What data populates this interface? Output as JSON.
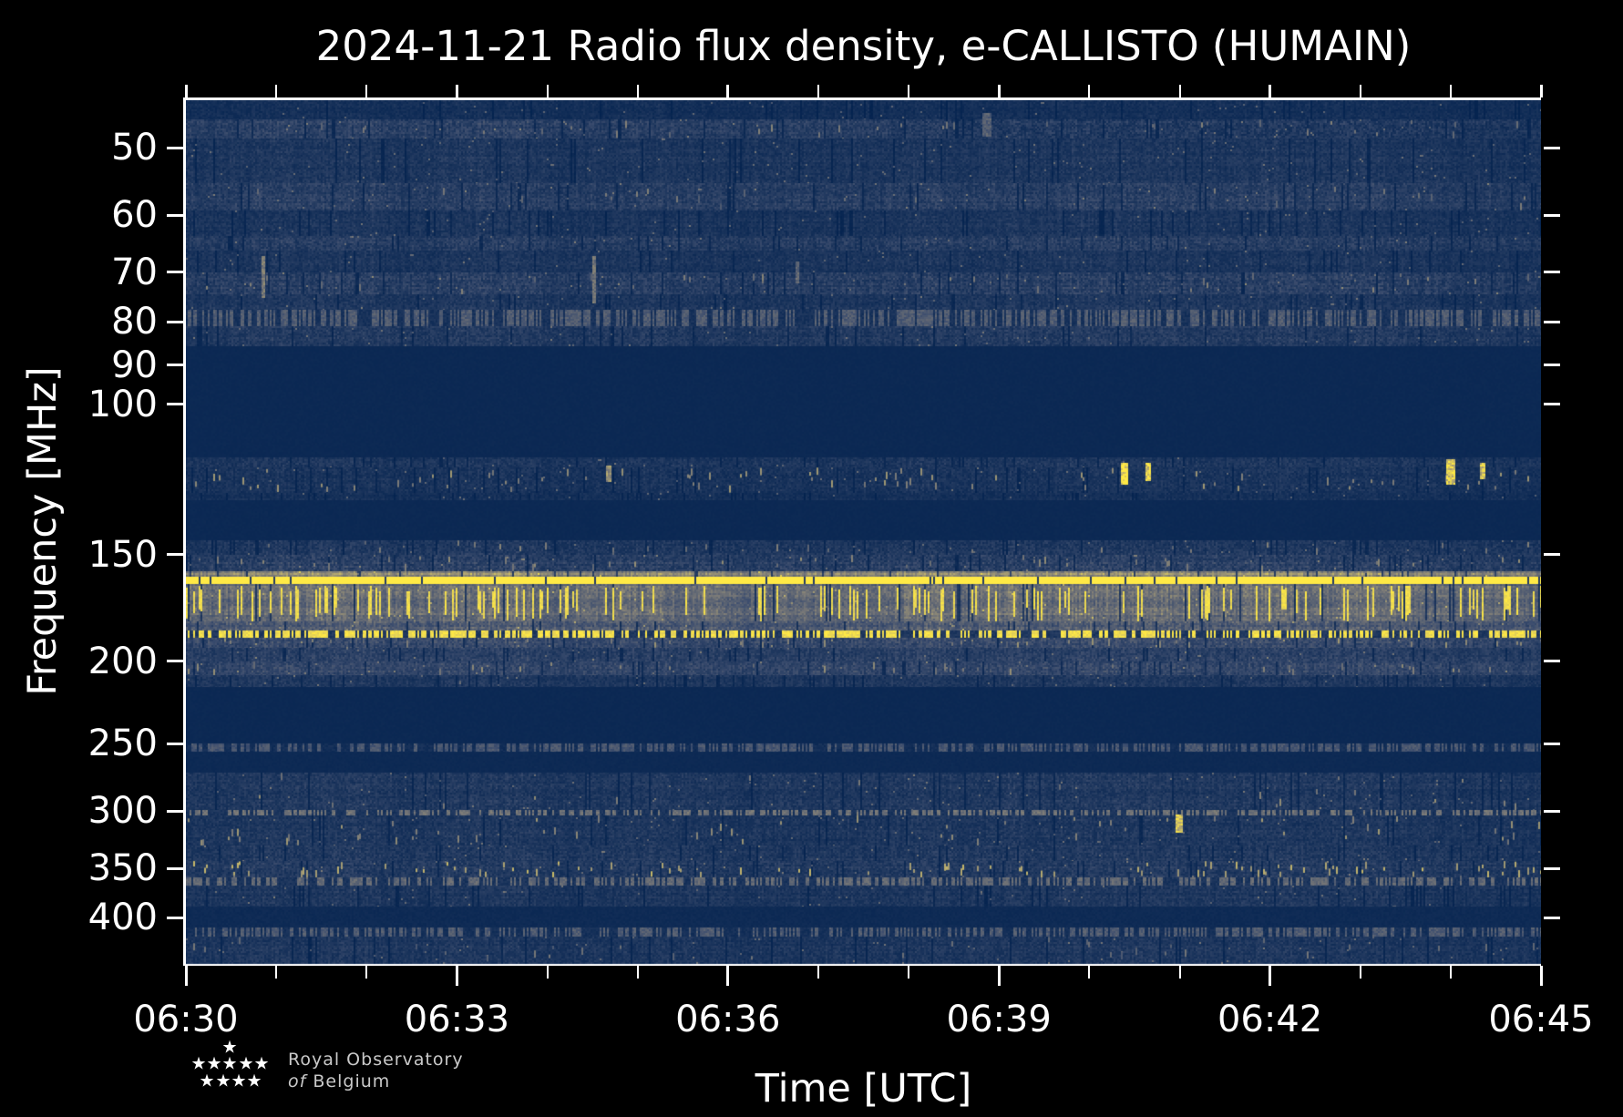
{
  "title": "2024-11-21 Radio flux density, e-CALLISTO (HUMAIN)",
  "footer": {
    "org_line1": "Royal Observatory",
    "org_line2_italic": "of",
    "org_line2_rest": "Belgium"
  },
  "chart_data": {
    "type": "heatmap",
    "title": "2024-11-21 Radio flux density, e-CALLISTO (HUMAIN)",
    "xlabel": "Time [UTC]",
    "ylabel": "Frequency [MHz]",
    "x_ticks": [
      "06:30",
      "06:33",
      "06:36",
      "06:39",
      "06:42",
      "06:45"
    ],
    "x_minor_per_major": 3,
    "y_ticks": [
      50,
      60,
      70,
      80,
      90,
      100,
      150,
      200,
      250,
      300,
      350,
      400
    ],
    "y_scale": "log",
    "y_range_mhz": [
      44,
      452
    ],
    "time_span_minutes": 15,
    "grid": false,
    "legend": "none",
    "colormap": "cividis",
    "colormap_stops": [
      [
        0.0,
        [
          0,
          32,
          77
        ]
      ],
      [
        0.25,
        [
          60,
          77,
          110
        ]
      ],
      [
        0.5,
        [
          124,
          123,
          120
        ]
      ],
      [
        0.75,
        [
          188,
          175,
          111
        ]
      ],
      [
        1.0,
        [
          255,
          233,
          69
        ]
      ]
    ],
    "background_level": 0.05,
    "seed": 42,
    "bands": [
      {
        "f0": 44,
        "f1": 46.3,
        "style": "noise",
        "level": 0.08,
        "var": 0.07
      },
      {
        "f0": 46.3,
        "f1": 48.8,
        "style": "speckle",
        "level": 0.17,
        "var": 0.14,
        "density": 0.04,
        "bright": 0.45,
        "step_at": 0.52,
        "step_gain": 0.78
      },
      {
        "f0": 48.8,
        "f1": 55,
        "style": "noise",
        "level": 0.12,
        "var": 0.1
      },
      {
        "f0": 55,
        "f1": 59.3,
        "style": "speckle",
        "level": 0.16,
        "var": 0.13,
        "density": 0.03,
        "bright": 0.42
      },
      {
        "f0": 59.3,
        "f1": 63.5,
        "style": "noise",
        "level": 0.11,
        "var": 0.09
      },
      {
        "f0": 63.5,
        "f1": 66,
        "style": "noise",
        "level": 0.15,
        "var": 0.13
      },
      {
        "f0": 66,
        "f1": 70,
        "style": "noise",
        "level": 0.11,
        "var": 0.09
      },
      {
        "f0": 70,
        "f1": 74.3,
        "style": "speckle",
        "level": 0.16,
        "var": 0.14,
        "density": 0.03,
        "bright": 0.45
      },
      {
        "f0": 74.3,
        "f1": 77.5,
        "style": "noise",
        "level": 0.12,
        "var": 0.1
      },
      {
        "f0": 77.5,
        "f1": 81,
        "style": "dotline",
        "level": 0.1,
        "var": 0.08,
        "density": 0.5,
        "bright": 0.33
      },
      {
        "f0": 81,
        "f1": 85.4,
        "style": "noise",
        "level": 0.14,
        "var": 0.12
      },
      {
        "f0": 85.4,
        "f1": 115.5,
        "style": "flat",
        "level": 0.05,
        "var": 0.015
      },
      {
        "f0": 115.5,
        "f1": 118.5,
        "style": "noise",
        "level": 0.11,
        "var": 0.1
      },
      {
        "f0": 118.5,
        "f1": 127,
        "style": "speckle",
        "level": 0.1,
        "var": 0.09,
        "density": 0.1,
        "bright": 0.55
      },
      {
        "f0": 127,
        "f1": 129.7,
        "style": "noise",
        "level": 0.09,
        "var": 0.07
      },
      {
        "f0": 129.7,
        "f1": 144.4,
        "style": "flat",
        "level": 0.05,
        "var": 0.015
      },
      {
        "f0": 144.4,
        "f1": 150,
        "style": "speckle",
        "level": 0.13,
        "var": 0.12,
        "density": 0.03,
        "bright": 0.45
      },
      {
        "f0": 150,
        "f1": 156.8,
        "style": "speckle",
        "level": 0.17,
        "var": 0.15,
        "density": 0.06,
        "bright": 0.5
      },
      {
        "f0": 156.8,
        "f1": 159.1,
        "style": "noise",
        "level": 0.55,
        "var": 0.16
      },
      {
        "f0": 159.1,
        "f1": 162.3,
        "style": "line",
        "level": 1.0,
        "var": 0.0
      },
      {
        "f0": 162.3,
        "f1": 179.5,
        "style": "bursts",
        "level": 0.4,
        "var": 0.16,
        "density": 0.17,
        "bright": 1.0
      },
      {
        "f0": 179.5,
        "f1": 184,
        "style": "noise",
        "level": 0.3,
        "var": 0.16
      },
      {
        "f0": 184,
        "f1": 187.7,
        "style": "dotline",
        "level": 0.13,
        "var": 0.1,
        "density": 0.58,
        "bright": 0.95
      },
      {
        "f0": 187.7,
        "f1": 193,
        "style": "speckle",
        "level": 0.22,
        "var": 0.15,
        "density": 0.04,
        "bright": 0.55
      },
      {
        "f0": 193,
        "f1": 200,
        "style": "noise",
        "level": 0.16,
        "var": 0.12
      },
      {
        "f0": 200,
        "f1": 208,
        "style": "speckle",
        "level": 0.2,
        "var": 0.14,
        "density": 0.04,
        "bright": 0.5
      },
      {
        "f0": 208,
        "f1": 214.4,
        "style": "noise",
        "level": 0.12,
        "var": 0.1
      },
      {
        "f0": 214.4,
        "f1": 249.7,
        "style": "flat",
        "level": 0.05,
        "var": 0.015
      },
      {
        "f0": 249.7,
        "f1": 255.5,
        "style": "dotline",
        "level": 0.08,
        "var": 0.07,
        "density": 0.55,
        "bright": 0.3
      },
      {
        "f0": 255.5,
        "f1": 270.6,
        "style": "flat",
        "level": 0.055,
        "var": 0.02
      },
      {
        "f0": 270.6,
        "f1": 299.1,
        "style": "speckle",
        "level": 0.13,
        "var": 0.11,
        "density": 0.04,
        "bright": 0.5
      },
      {
        "f0": 299.1,
        "f1": 303.5,
        "style": "dotline",
        "level": 0.11,
        "var": 0.09,
        "density": 0.5,
        "bright": 0.45
      },
      {
        "f0": 303.5,
        "f1": 329.5,
        "style": "speckle",
        "level": 0.12,
        "var": 0.1,
        "density": 0.08,
        "bright": 0.55
      },
      {
        "f0": 329.5,
        "f1": 343,
        "style": "noise",
        "level": 0.13,
        "var": 0.11
      },
      {
        "f0": 343,
        "f1": 358.6,
        "style": "speckle",
        "level": 0.14,
        "var": 0.12,
        "density": 0.14,
        "bright": 0.7
      },
      {
        "f0": 358.6,
        "f1": 366.7,
        "style": "dotline",
        "level": 0.11,
        "var": 0.09,
        "density": 0.5,
        "bright": 0.4
      },
      {
        "f0": 366.7,
        "f1": 387.8,
        "style": "noise",
        "level": 0.12,
        "var": 0.1
      },
      {
        "f0": 387.8,
        "f1": 410.7,
        "style": "flat",
        "level": 0.06,
        "var": 0.03
      },
      {
        "f0": 410.7,
        "f1": 420.7,
        "style": "dotline",
        "level": 0.09,
        "var": 0.07,
        "density": 0.5,
        "bright": 0.33
      },
      {
        "f0": 420.7,
        "f1": 452,
        "style": "speckle",
        "level": 0.12,
        "var": 0.1,
        "density": 0.04,
        "bright": 0.4
      }
    ],
    "transients": [
      {
        "x_frac": 0.056,
        "f0": 67,
        "f1": 75,
        "level": 0.5,
        "width": 3
      },
      {
        "x_frac": 0.3,
        "f0": 67,
        "f1": 76,
        "level": 0.45,
        "width": 3
      },
      {
        "x_frac": 0.45,
        "f0": 68,
        "f1": 72,
        "level": 0.4,
        "width": 3
      },
      {
        "x_frac": 0.588,
        "f0": 45.5,
        "f1": 48.5,
        "level": 0.35,
        "width": 10
      },
      {
        "x_frac": 0.31,
        "f0": 118,
        "f1": 123,
        "level": 0.6,
        "width": 6
      },
      {
        "x_frac": 0.69,
        "f0": 117,
        "f1": 124,
        "level": 1.0,
        "width": 8
      },
      {
        "x_frac": 0.708,
        "f0": 117,
        "f1": 123,
        "level": 0.9,
        "width": 6
      },
      {
        "x_frac": 0.93,
        "f0": 116,
        "f1": 124,
        "level": 0.85,
        "width": 9
      },
      {
        "x_frac": 0.955,
        "f0": 117,
        "f1": 122,
        "level": 0.8,
        "width": 5
      },
      {
        "x_frac": 0.73,
        "f0": 303,
        "f1": 317,
        "level": 0.8,
        "width": 8
      }
    ]
  }
}
